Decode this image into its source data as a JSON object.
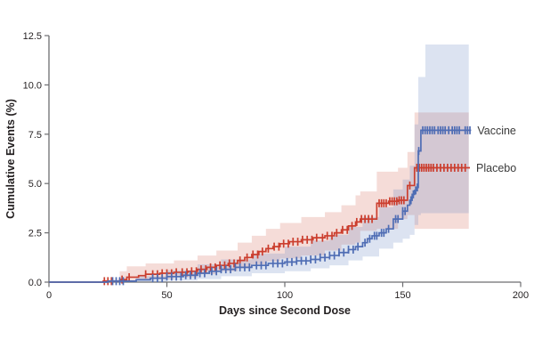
{
  "chart_data": {
    "type": "line",
    "subtype": "kaplan-meier-step-cumulative-incidence",
    "title": "",
    "xlabel": "Days since Second Dose",
    "ylabel": "Cumulative Events (%)",
    "xlim": [
      0,
      200
    ],
    "ylim": [
      0,
      12.5
    ],
    "x_ticks": [
      0,
      50,
      100,
      150,
      200
    ],
    "x_tick_labels": [
      "0",
      "50",
      "100",
      "150",
      "200"
    ],
    "y_ticks": [
      0.0,
      2.5,
      5.0,
      7.5,
      10.0,
      12.5
    ],
    "y_tick_labels": [
      "0.0",
      "2.5",
      "5.0",
      "7.5",
      "10.0",
      "12.5"
    ],
    "grid": false,
    "axis_color": "#6d6e71",
    "legend_position": "at-line-ends-right",
    "series": [
      {
        "name": "Placebo",
        "color": "#cb3e2e",
        "band_color": "rgba(203,78,58,0.20)",
        "final_value_pct": 5.8,
        "end_day": 178.5,
        "steps": [
          [
            0,
            0
          ],
          [
            23,
            0.05
          ],
          [
            30,
            0.13
          ],
          [
            33,
            0.25
          ],
          [
            38,
            0.33
          ],
          [
            41,
            0.4
          ],
          [
            47,
            0.45
          ],
          [
            53,
            0.5
          ],
          [
            59,
            0.55
          ],
          [
            63,
            0.65
          ],
          [
            67,
            0.75
          ],
          [
            71,
            0.85
          ],
          [
            76,
            0.95
          ],
          [
            80,
            1.1
          ],
          [
            83,
            1.25
          ],
          [
            86,
            1.4
          ],
          [
            89,
            1.55
          ],
          [
            92,
            1.7
          ],
          [
            95,
            1.8
          ],
          [
            98,
            1.95
          ],
          [
            102,
            2.05
          ],
          [
            107,
            2.15
          ],
          [
            112,
            2.25
          ],
          [
            117,
            2.35
          ],
          [
            121,
            2.5
          ],
          [
            124,
            2.65
          ],
          [
            127,
            2.85
          ],
          [
            130,
            3.05
          ],
          [
            132,
            3.2
          ],
          [
            139,
            4.0
          ],
          [
            144,
            4.1
          ],
          [
            148,
            4.15
          ],
          [
            152,
            4.9
          ],
          [
            155,
            5.8
          ],
          [
            178.5,
            5.8
          ]
        ],
        "censor_days": [
          23.5,
          25,
          26.5,
          31,
          34,
          41,
          44,
          46,
          48,
          50,
          52,
          54,
          56.5,
          58.5,
          60.5,
          62.5,
          64.5,
          66.5,
          68.5,
          70.5,
          72.5,
          74.5,
          76.5,
          78.5,
          81,
          84,
          86.5,
          88.5,
          90.5,
          93,
          95.5,
          97.5,
          99.5,
          101.5,
          103.5,
          105.5,
          107.5,
          109.5,
          111.5,
          113.5,
          116,
          118,
          120,
          122,
          124.5,
          126.5,
          128.5,
          130.5,
          132.5,
          134,
          135.5,
          137,
          140,
          141,
          142,
          143,
          144.5,
          145.5,
          146.5,
          147.5,
          148.5,
          149.5,
          150.5,
          153,
          156,
          157,
          158,
          159,
          160,
          161,
          162,
          163,
          164.5,
          166,
          167.5,
          169,
          170.5,
          172,
          173.5,
          175,
          176.5
        ],
        "ci_band": [
          [
            23,
            0,
            0.12
          ],
          [
            30,
            0,
            0.55
          ],
          [
            33,
            0.04,
            0.8
          ],
          [
            41,
            0.1,
            0.95
          ],
          [
            53,
            0.15,
            1.1
          ],
          [
            63,
            0.25,
            1.35
          ],
          [
            71,
            0.4,
            1.6
          ],
          [
            80,
            0.55,
            2.0
          ],
          [
            86,
            0.7,
            2.35
          ],
          [
            92,
            0.9,
            2.7
          ],
          [
            98,
            1.05,
            3.0
          ],
          [
            107,
            1.2,
            3.3
          ],
          [
            117,
            1.35,
            3.55
          ],
          [
            124,
            1.6,
            3.9
          ],
          [
            130,
            1.9,
            4.4
          ],
          [
            132,
            2.0,
            4.6
          ],
          [
            139,
            2.6,
            5.6
          ],
          [
            148,
            2.7,
            5.8
          ],
          [
            152,
            3.2,
            6.6
          ],
          [
            155,
            3.4,
            8.6
          ],
          [
            159.6,
            2.7,
            8.6
          ],
          [
            178,
            2.7,
            8.6
          ]
        ]
      },
      {
        "name": "Vaccine",
        "color": "#4f6db4",
        "band_color": "rgba(110,140,195,0.24)",
        "final_value_pct": 7.7,
        "end_day": 179,
        "steps": [
          [
            0,
            0
          ],
          [
            25,
            0.05
          ],
          [
            37,
            0.12
          ],
          [
            43,
            0.2
          ],
          [
            50,
            0.28
          ],
          [
            57,
            0.35
          ],
          [
            63,
            0.45
          ],
          [
            68,
            0.55
          ],
          [
            73,
            0.65
          ],
          [
            79,
            0.75
          ],
          [
            86,
            0.85
          ],
          [
            93,
            0.95
          ],
          [
            100,
            1.02
          ],
          [
            105,
            1.08
          ],
          [
            111,
            1.15
          ],
          [
            115,
            1.25
          ],
          [
            119,
            1.35
          ],
          [
            123,
            1.5
          ],
          [
            127,
            1.65
          ],
          [
            130,
            1.8
          ],
          [
            133,
            2.0
          ],
          [
            135,
            2.2
          ],
          [
            137,
            2.35
          ],
          [
            140,
            2.5
          ],
          [
            143,
            2.7
          ],
          [
            146,
            3.2
          ],
          [
            150,
            3.6
          ],
          [
            152,
            3.9
          ],
          [
            153,
            4.15
          ],
          [
            154,
            4.45
          ],
          [
            155,
            4.65
          ],
          [
            156,
            4.8
          ],
          [
            156.6,
            6.65
          ],
          [
            157.7,
            7.7
          ],
          [
            179,
            7.7
          ]
        ],
        "censor_days": [
          27,
          28.5,
          30,
          31.5,
          44,
          46,
          48,
          50,
          52,
          54,
          56,
          58,
          60,
          62,
          64,
          66,
          69,
          71,
          73,
          75,
          77,
          79,
          81,
          83,
          85,
          88,
          90,
          92,
          95,
          97,
          99,
          101,
          103,
          105,
          107,
          109,
          111,
          113,
          115,
          117,
          119,
          121,
          123,
          125,
          127,
          129,
          131,
          134,
          136,
          138,
          139,
          141,
          142,
          144,
          147,
          148,
          150,
          151,
          153.5,
          154.5,
          155.5,
          156.2,
          156.8,
          158.5,
          159.5,
          160.5,
          161.5,
          162.5,
          163.5,
          165,
          166,
          167,
          168,
          169.5,
          171,
          172,
          173,
          174,
          176.5,
          177.5,
          178.5
        ],
        "ci_band": [
          [
            25,
            0,
            0.1
          ],
          [
            37,
            0,
            0.3
          ],
          [
            50,
            0.02,
            0.6
          ],
          [
            63,
            0.08,
            0.9
          ],
          [
            73,
            0.15,
            1.15
          ],
          [
            86,
            0.3,
            1.45
          ],
          [
            100,
            0.45,
            1.8
          ],
          [
            111,
            0.55,
            2.1
          ],
          [
            119,
            0.7,
            2.4
          ],
          [
            127,
            0.85,
            2.8
          ],
          [
            133,
            1.1,
            3.3
          ],
          [
            140,
            1.3,
            3.8
          ],
          [
            146,
            1.7,
            4.7
          ],
          [
            150,
            2.0,
            5.2
          ],
          [
            153,
            2.2,
            5.9
          ],
          [
            155,
            2.4,
            8.0
          ],
          [
            156.6,
            2.9,
            10.4
          ],
          [
            157.7,
            3.4,
            10.4
          ],
          [
            159.6,
            3.5,
            12.05
          ],
          [
            178,
            3.5,
            12.05
          ]
        ]
      }
    ]
  },
  "legend": {
    "vaccine_label": "Vaccine",
    "placebo_label": "Placebo"
  },
  "axes": {
    "x_title": "Days since Second Dose",
    "y_title": "Cumulative Events (%)"
  }
}
